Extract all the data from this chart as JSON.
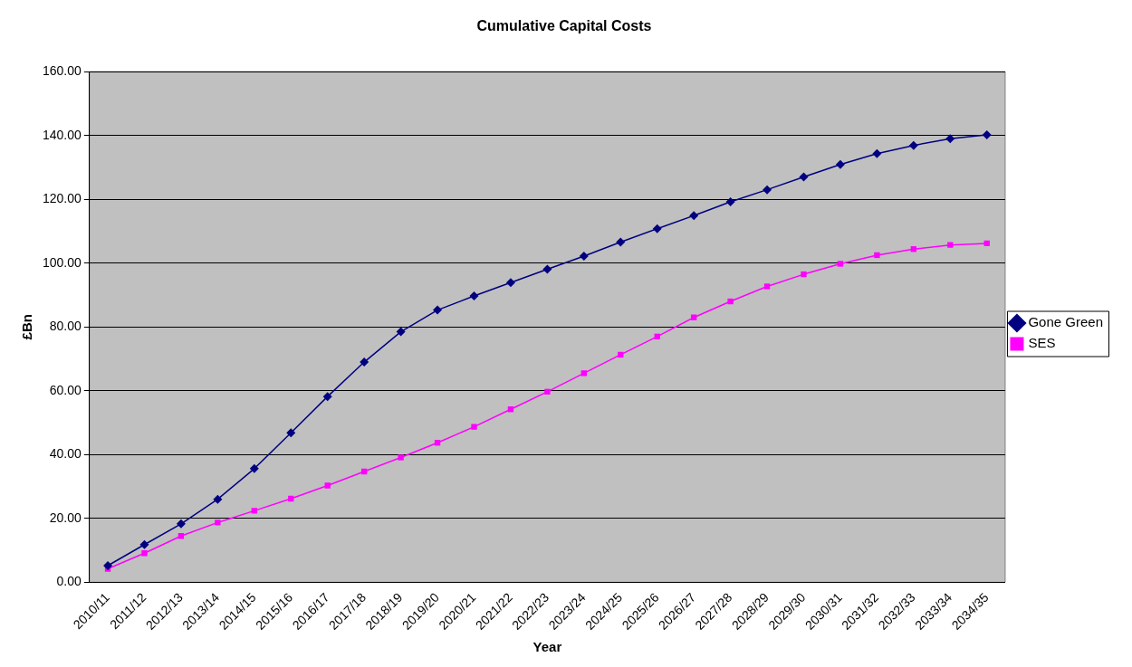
{
  "chart_data": {
    "type": "line",
    "title": "Cumulative Capital Costs",
    "xlabel": "Year",
    "ylabel": "£Bn",
    "categories": [
      "2010/11",
      "2011/12",
      "2012/13",
      "2013/14",
      "2014/15",
      "2015/16",
      "2016/17",
      "2017/18",
      "2018/19",
      "2019/20",
      "2020/21",
      "2021/22",
      "2022/23",
      "2023/24",
      "2024/25",
      "2025/26",
      "2026/27",
      "2027/28",
      "2028/29",
      "2029/30",
      "2030/31",
      "2031/32",
      "2032/33",
      "2033/34",
      "2034/35"
    ],
    "series": [
      {
        "name": "Gone Green",
        "color": "#000080",
        "marker": "diamond",
        "values": [
          5.2,
          11.8,
          18.3,
          26,
          35.6,
          46.8,
          58.2,
          69,
          78.5,
          85.3,
          89.7,
          93.9,
          98.1,
          102.2,
          106.6,
          110.8,
          114.9,
          119.2,
          123,
          127,
          130.9,
          134.3,
          136.9,
          139,
          140.2
        ]
      },
      {
        "name": "SES",
        "color": "#ff00ff",
        "marker": "square",
        "values": [
          4.2,
          9.1,
          14.5,
          18.7,
          22.4,
          26.2,
          30.3,
          34.7,
          39.1,
          43.7,
          48.7,
          54.2,
          59.7,
          65.5,
          71.3,
          77,
          83,
          88,
          92.7,
          96.5,
          99.8,
          102.5,
          104.4,
          105.7,
          106.2
        ]
      }
    ],
    "ylim": [
      0,
      160
    ],
    "yticks": [
      {
        "value": 0,
        "label": "0.00"
      },
      {
        "value": 20,
        "label": "20.00"
      },
      {
        "value": 40,
        "label": "40.00"
      },
      {
        "value": 60,
        "label": "60.00"
      },
      {
        "value": 80,
        "label": "80.00"
      },
      {
        "value": 100,
        "label": "100.00"
      },
      {
        "value": 120,
        "label": "120.00"
      },
      {
        "value": 140,
        "label": "140.00"
      },
      {
        "value": 160,
        "label": "160.00"
      }
    ],
    "grid": "y",
    "legend": "right",
    "line_style": "solid"
  }
}
